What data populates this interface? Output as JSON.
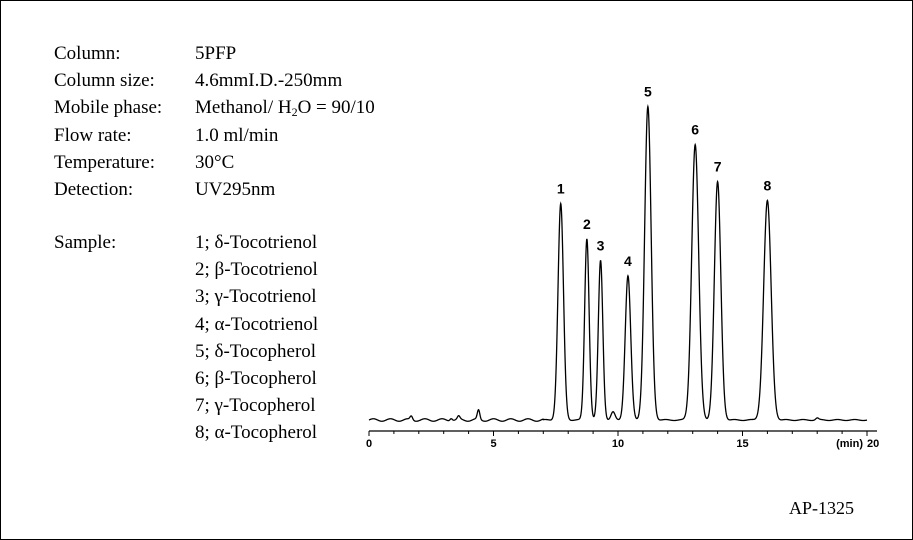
{
  "conditions": [
    {
      "label": "Column:",
      "value": "5PFP"
    },
    {
      "label": "Column size:",
      "value": "4.6mmI.D.-250mm"
    },
    {
      "label": "Mobile phase:",
      "value_pre": "Methanol/ H",
      "value_sub": "2",
      "value_post": "O = 90/10"
    },
    {
      "label": "Flow rate:",
      "value": "1.0 ml/min"
    },
    {
      "label": "Temperature:",
      "value": "30°C"
    },
    {
      "label": "Detection:",
      "value": "UV295nm"
    }
  ],
  "sample": {
    "label": "Sample:",
    "items": [
      "1; δ-Tocotrienol",
      "2; β-Tocotrienol",
      "3; γ-Tocotrienol",
      "4; α-Tocotrienol",
      "5; δ-Tocopherol",
      "6; β-Tocopherol",
      "7; γ-Tocopherol",
      "8; α-Tocopherol"
    ]
  },
  "code": "AP-1325",
  "chart_data": {
    "type": "line",
    "xunit_label": "(min)",
    "xlim": [
      0,
      20
    ],
    "xticks": [
      0,
      5,
      10,
      15,
      20
    ],
    "ylim": [
      0,
      1
    ],
    "grid": false,
    "peaks": [
      {
        "label": "1",
        "rt": 7.7,
        "height": 0.69,
        "width": 0.11
      },
      {
        "label": "2",
        "rt": 8.75,
        "height": 0.58,
        "width": 0.09
      },
      {
        "label": "3",
        "rt": 9.3,
        "height": 0.51,
        "width": 0.09
      },
      {
        "label": "4",
        "rt": 10.4,
        "height": 0.46,
        "width": 0.11
      },
      {
        "label": "5",
        "rt": 11.2,
        "height": 1.0,
        "width": 0.13
      },
      {
        "label": "6",
        "rt": 13.1,
        "height": 0.88,
        "width": 0.14
      },
      {
        "label": "7",
        "rt": 14.0,
        "height": 0.76,
        "width": 0.13
      },
      {
        "label": "8",
        "rt": 16.0,
        "height": 0.7,
        "width": 0.15
      }
    ],
    "minor_peaks": [
      {
        "rt": 1.7,
        "height": 0.012,
        "width": 0.05
      },
      {
        "rt": 3.3,
        "height": 0.008,
        "width": 0.05
      },
      {
        "rt": 3.6,
        "height": 0.01,
        "width": 0.05
      },
      {
        "rt": 4.4,
        "height": 0.03,
        "width": 0.05
      },
      {
        "rt": 9.8,
        "height": 0.025,
        "width": 0.08
      },
      {
        "rt": 18.0,
        "height": 0.006,
        "width": 0.06
      }
    ]
  }
}
